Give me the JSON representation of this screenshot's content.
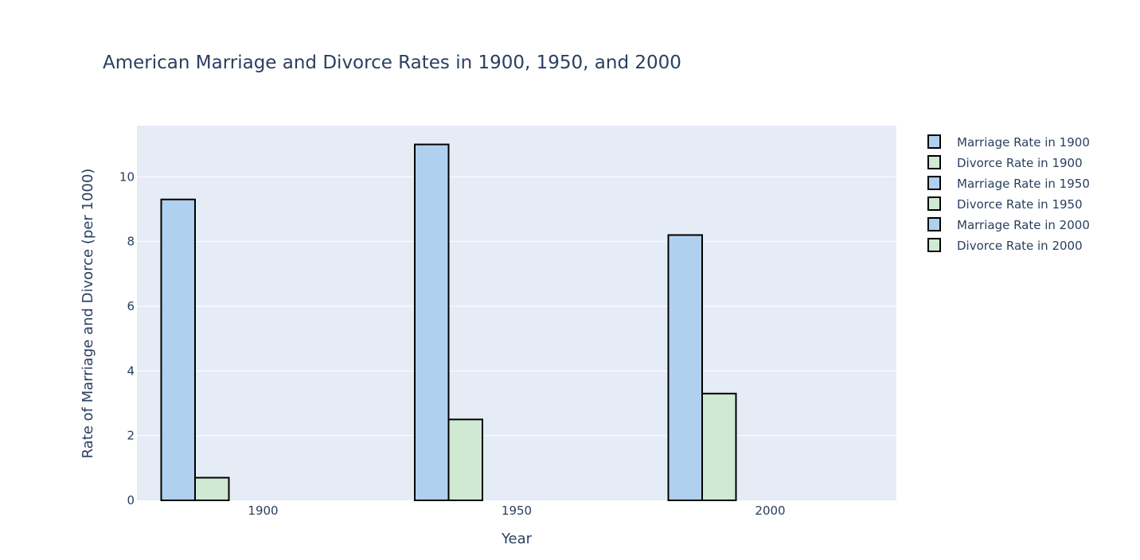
{
  "chart_data": {
    "type": "bar",
    "title": "American Marriage and Divorce Rates in 1900, 1950, and 2000",
    "xlabel": "Year",
    "ylabel": "Rate of Marriage and Divorce (per 1000)",
    "x_ticks": [
      "1900",
      "1950",
      "2000"
    ],
    "x_tick_values": [
      1900,
      1950,
      2000
    ],
    "ylim": [
      0,
      11.58
    ],
    "y_ticks": [
      0,
      2,
      4,
      6,
      8,
      10
    ],
    "grid": true,
    "legend_position": "right",
    "colors": {
      "marriage": "#b0d0ef",
      "divorce": "#cfe9d2",
      "outline": "#000000",
      "plot_bg": "#e5ecf6"
    },
    "series": [
      {
        "name": "Marriage Rate in 1900",
        "kind": "marriage",
        "category": 1900,
        "value": 9.3
      },
      {
        "name": "Divorce Rate in 1900",
        "kind": "divorce",
        "category": 1900,
        "value": 0.7
      },
      {
        "name": "Marriage Rate in 1950",
        "kind": "marriage",
        "category": 1950,
        "value": 11.0
      },
      {
        "name": "Divorce Rate in 1950",
        "kind": "divorce",
        "category": 1950,
        "value": 2.5
      },
      {
        "name": "Marriage Rate in 2000",
        "kind": "marriage",
        "category": 2000,
        "value": 8.2
      },
      {
        "name": "Divorce Rate in 2000",
        "kind": "divorce",
        "category": 2000,
        "value": 3.3
      }
    ]
  }
}
